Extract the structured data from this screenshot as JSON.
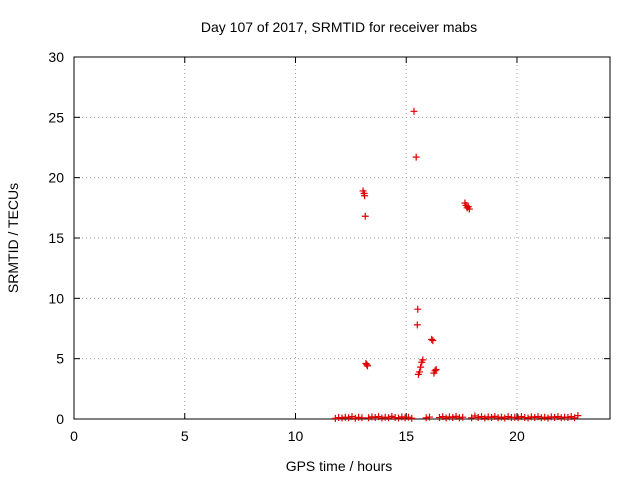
{
  "chart_data": {
    "type": "scatter",
    "title": "Day 107 of 2017, SRMTID for receiver mabs",
    "xlabel": "GPS time / hours",
    "ylabel": "SRMTID / TECUs",
    "xlim": [
      0,
      24.2
    ],
    "ylim": [
      0,
      30
    ],
    "xticks": [
      0,
      5,
      10,
      15,
      20
    ],
    "xtick_labels": [
      "0",
      "5",
      "10",
      "15",
      "20"
    ],
    "yticks": [
      0,
      5,
      10,
      15,
      20,
      25,
      30
    ],
    "ytick_labels": [
      "0",
      "5",
      "10",
      "15",
      "20",
      "25",
      "30"
    ],
    "grid": true,
    "marker": "+",
    "color": "#e00000",
    "series": [
      {
        "name": "SRMTID",
        "points": [
          [
            11.8,
            0.05
          ],
          [
            11.95,
            0.12
          ],
          [
            12.1,
            0.08
          ],
          [
            12.25,
            0.15
          ],
          [
            12.4,
            0.1
          ],
          [
            12.55,
            0.2
          ],
          [
            12.7,
            0.06
          ],
          [
            12.85,
            0.14
          ],
          [
            13.0,
            0.1
          ],
          [
            13.05,
            18.9
          ],
          [
            13.1,
            18.7
          ],
          [
            13.12,
            18.5
          ],
          [
            13.15,
            16.8
          ],
          [
            13.18,
            4.6
          ],
          [
            13.22,
            4.5
          ],
          [
            13.25,
            4.4
          ],
          [
            13.3,
            0.1
          ],
          [
            13.45,
            0.18
          ],
          [
            13.6,
            0.12
          ],
          [
            13.75,
            0.2
          ],
          [
            13.9,
            0.08
          ],
          [
            14.05,
            0.15
          ],
          [
            14.2,
            0.1
          ],
          [
            14.35,
            0.22
          ],
          [
            14.5,
            0.12
          ],
          [
            14.65,
            0.08
          ],
          [
            14.8,
            0.18
          ],
          [
            14.95,
            0.1
          ],
          [
            15.1,
            0.15
          ],
          [
            15.25,
            0.06
          ],
          [
            15.35,
            25.5
          ],
          [
            15.45,
            21.7
          ],
          [
            15.52,
            9.1
          ],
          [
            15.5,
            7.8
          ],
          [
            15.55,
            3.7
          ],
          [
            15.6,
            3.9
          ],
          [
            15.65,
            4.3
          ],
          [
            15.7,
            4.7
          ],
          [
            15.75,
            4.9
          ],
          [
            15.9,
            0.1
          ],
          [
            16.05,
            0.16
          ],
          [
            16.15,
            6.6
          ],
          [
            16.2,
            6.5
          ],
          [
            16.25,
            3.8
          ],
          [
            16.3,
            4.0
          ],
          [
            16.35,
            4.1
          ],
          [
            16.5,
            0.12
          ],
          [
            16.65,
            0.2
          ],
          [
            16.8,
            0.08
          ],
          [
            16.95,
            0.18
          ],
          [
            17.1,
            0.12
          ],
          [
            17.25,
            0.22
          ],
          [
            17.4,
            0.1
          ],
          [
            17.55,
            0.15
          ],
          [
            17.65,
            17.9
          ],
          [
            17.7,
            17.7
          ],
          [
            17.75,
            17.5
          ],
          [
            17.8,
            17.6
          ],
          [
            17.85,
            17.4
          ],
          [
            17.95,
            0.1
          ],
          [
            18.1,
            0.25
          ],
          [
            18.25,
            0.12
          ],
          [
            18.4,
            0.2
          ],
          [
            18.55,
            0.08
          ],
          [
            18.7,
            0.18
          ],
          [
            18.85,
            0.12
          ],
          [
            19.0,
            0.22
          ],
          [
            19.15,
            0.1
          ],
          [
            19.3,
            0.16
          ],
          [
            19.45,
            0.08
          ],
          [
            19.6,
            0.2
          ],
          [
            19.75,
            0.12
          ],
          [
            19.9,
            0.15
          ],
          [
            20.05,
            0.1
          ],
          [
            20.2,
            0.2
          ],
          [
            20.35,
            0.12
          ],
          [
            20.5,
            0.08
          ],
          [
            20.65,
            0.18
          ],
          [
            20.8,
            0.12
          ],
          [
            20.95,
            0.2
          ],
          [
            21.1,
            0.1
          ],
          [
            21.25,
            0.15
          ],
          [
            21.4,
            0.08
          ],
          [
            21.55,
            0.18
          ],
          [
            21.7,
            0.12
          ],
          [
            21.85,
            0.2
          ],
          [
            22.0,
            0.1
          ],
          [
            22.15,
            0.16
          ],
          [
            22.3,
            0.12
          ],
          [
            22.45,
            0.2
          ],
          [
            22.6,
            0.1
          ],
          [
            22.75,
            0.28
          ]
        ]
      }
    ]
  }
}
